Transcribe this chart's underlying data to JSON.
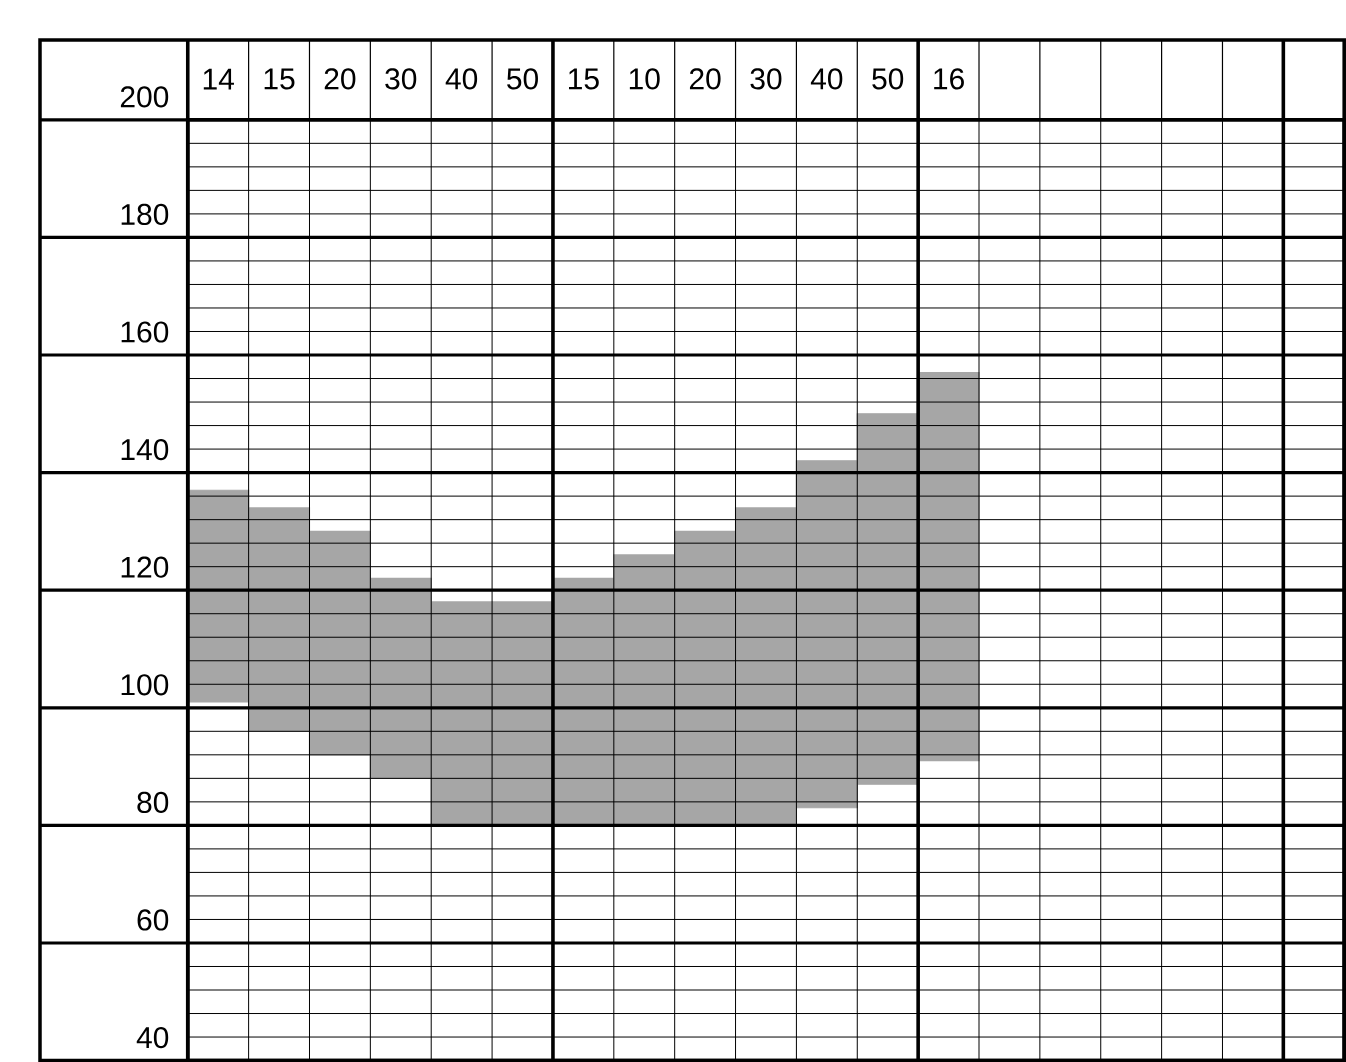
{
  "chart_data": {
    "type": "bar",
    "categories": [
      "14",
      "15",
      "20",
      "30",
      "40",
      "50",
      "15",
      "10",
      "20",
      "30",
      "40",
      "50",
      "16",
      null,
      null,
      null,
      null,
      null,
      null
    ],
    "base": [
      101,
      96,
      92,
      88,
      80,
      80,
      80,
      80,
      80,
      80,
      83,
      87,
      91,
      null,
      null,
      null,
      null,
      null,
      null
    ],
    "values": [
      36,
      38,
      38,
      34,
      38,
      38,
      42,
      46,
      50,
      54,
      59,
      63,
      66,
      null,
      null,
      null,
      null,
      null,
      null
    ],
    "color": "#a6a6a6",
    "ylim": [
      40,
      200
    ],
    "yticks": [
      40,
      60,
      80,
      100,
      120,
      140,
      160,
      180,
      200
    ],
    "grid": true
  }
}
